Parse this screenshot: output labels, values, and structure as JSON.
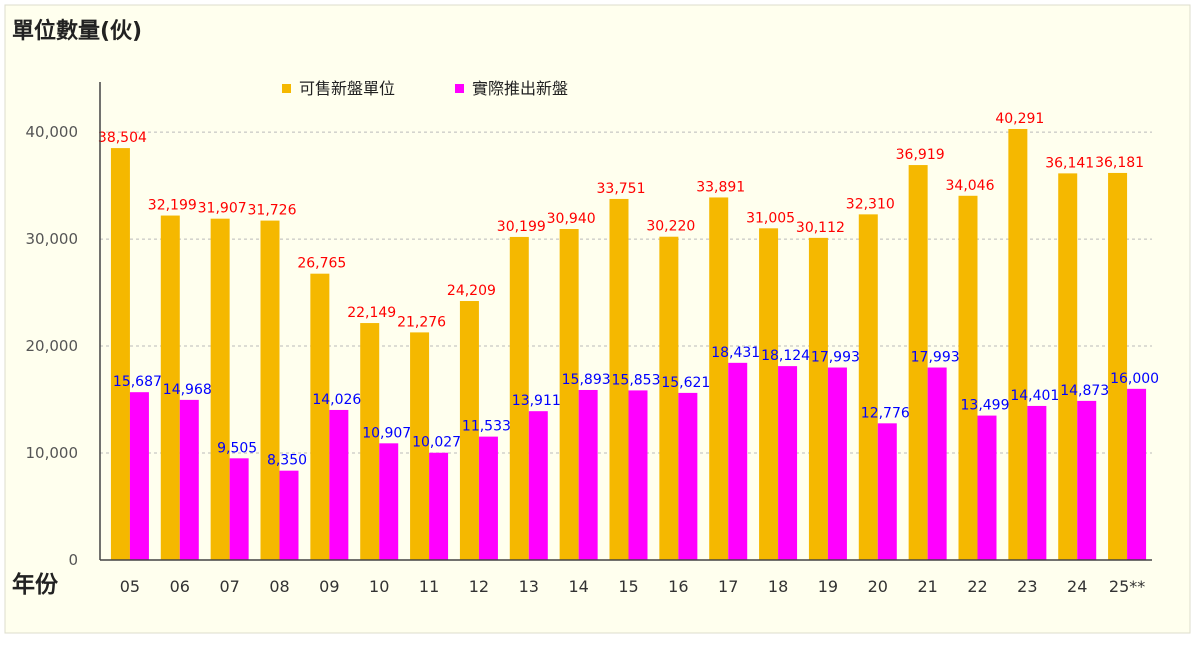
{
  "chart_data": {
    "type": "bar",
    "ylabel": "單位數量(伙)",
    "xlabel": "年份",
    "ylim": [
      0,
      43000
    ],
    "yticks": [
      0,
      10000,
      20000,
      30000,
      40000
    ],
    "ytick_labels": [
      "0",
      "10,000",
      "20,000",
      "30,000",
      "40,000"
    ],
    "grid": true,
    "legend_position": "top-center",
    "categories": [
      "05",
      "06",
      "07",
      "08",
      "09",
      "10",
      "11",
      "12",
      "13",
      "14",
      "15",
      "16",
      "17",
      "18",
      "19",
      "20",
      "21",
      "22",
      "23",
      "24",
      "25**"
    ],
    "series": [
      {
        "name": "可售新盤單位",
        "color": "#F5B800",
        "label_color": "#FF0000",
        "values": [
          38504,
          32199,
          31907,
          31726,
          26765,
          22149,
          21276,
          24209,
          30199,
          30940,
          33751,
          30220,
          33891,
          31005,
          30112,
          32310,
          36919,
          34046,
          40291,
          36141,
          36181
        ],
        "labels": [
          "38,504",
          "32,199",
          "31,907",
          "31,726",
          "26,765",
          "22,149",
          "21,276",
          "24,209",
          "30,199",
          "30,940",
          "33,751",
          "30,220",
          "33,891",
          "31,005",
          "30,112",
          "32,310",
          "36,919",
          "34,046",
          "40,291",
          "36,141",
          "36,181"
        ]
      },
      {
        "name": "實際推出新盤",
        "color": "#FF00FF",
        "label_color": "#0000FF",
        "values": [
          15687,
          14968,
          9505,
          8350,
          14026,
          10907,
          10027,
          11533,
          13911,
          15893,
          15853,
          15621,
          18431,
          18124,
          17993,
          12776,
          17993,
          13499,
          14401,
          14873,
          16000
        ],
        "labels": [
          "15,687",
          "14,968",
          "9,505",
          "8,350",
          "14,026",
          "10,907",
          "10,027",
          "11,533",
          "13,911",
          "15,893",
          "15,853",
          "15,621",
          "18,431",
          "18,124",
          "17,993",
          "12,776",
          "17,993",
          "13,499",
          "14,401",
          "14,873",
          "16,000"
        ]
      }
    ]
  }
}
